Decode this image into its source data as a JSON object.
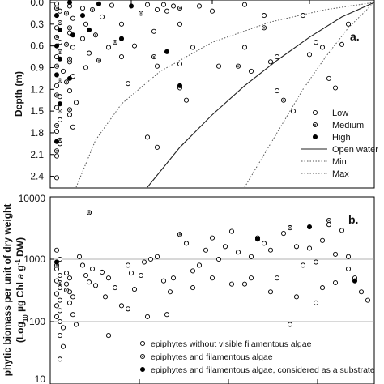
{
  "chart_data": [
    {
      "panel": "a.",
      "type": "scatter",
      "ylabel": "Depth (m)",
      "y_ticks": [
        "0.0",
        "0.3",
        "0.6",
        "0.9",
        "1.2",
        "1.5",
        "1.8",
        "2.1",
        "2.4"
      ],
      "ylim": [
        0.0,
        2.55
      ],
      "y_inverted": true,
      "x_visible": false,
      "xlim": [
        0,
        1
      ],
      "grid": false,
      "legend_position": "bottom-right",
      "legend": [
        {
          "label": "Low",
          "marker": "open-circle"
        },
        {
          "label": "Medium",
          "marker": "half-filled-circle"
        },
        {
          "label": "High",
          "marker": "filled-circle"
        },
        {
          "label": "Open water",
          "line": "solid"
        },
        {
          "label": "Min",
          "line": "dotted"
        },
        {
          "label": "Max",
          "line": "dotted"
        }
      ],
      "series": [
        {
          "name": "Low",
          "marker": "open-circle",
          "points": [
            [
              0.02,
              0.02
            ],
            [
              0.03,
              0.12
            ],
            [
              0.02,
              0.35
            ],
            [
              0.03,
              0.55
            ],
            [
              0.02,
              0.75
            ],
            [
              0.04,
              0.95
            ],
            [
              0.02,
              1.15
            ],
            [
              0.03,
              1.3
            ],
            [
              0.02,
              1.45
            ],
            [
              0.03,
              1.62
            ],
            [
              0.02,
              1.78
            ],
            [
              0.03,
              1.95
            ],
            [
              0.02,
              2.12
            ],
            [
              0.02,
              2.42
            ],
            [
              0.06,
              0.05
            ],
            [
              0.07,
              0.22
            ],
            [
              0.06,
              0.42
            ],
            [
              0.07,
              0.62
            ],
            [
              0.06,
              0.82
            ],
            [
              0.07,
              1.02
            ],
            [
              0.06,
              1.22
            ],
            [
              0.08,
              1.38
            ],
            [
              0.06,
              1.55
            ],
            [
              0.07,
              1.72
            ],
            [
              0.1,
              0.08
            ],
            [
              0.11,
              0.3
            ],
            [
              0.1,
              0.5
            ],
            [
              0.12,
              0.7
            ],
            [
              0.11,
              0.9
            ],
            [
              0.16,
              0.2
            ],
            [
              0.18,
              0.62
            ],
            [
              0.19,
              0.04
            ],
            [
              0.22,
              0.3
            ],
            [
              0.22,
              0.75
            ],
            [
              0.24,
              1.12
            ],
            [
              0.26,
              0.6
            ],
            [
              0.3,
              0.03
            ],
            [
              0.32,
              0.4
            ],
            [
              0.33,
              0.1
            ],
            [
              0.33,
              0.88
            ],
            [
              0.35,
              0.03
            ],
            [
              0.36,
              0.12
            ],
            [
              0.38,
              0.05
            ],
            [
              0.4,
              0.3
            ],
            [
              0.4,
              0.85
            ],
            [
              0.4,
              1.18
            ],
            [
              0.42,
              1.35
            ],
            [
              0.44,
              0.62
            ],
            [
              0.3,
              1.86
            ],
            [
              0.33,
              2.0
            ],
            [
              0.46,
              0.05
            ],
            [
              0.5,
              0.12
            ],
            [
              0.52,
              0.88
            ],
            [
              0.6,
              0.03
            ],
            [
              0.6,
              0.62
            ],
            [
              0.62,
              0.95
            ],
            [
              0.66,
              0.18
            ],
            [
              0.68,
              0.82
            ],
            [
              0.7,
              0.75
            ],
            [
              0.7,
              1.22
            ],
            [
              0.75,
              1.5
            ],
            [
              0.78,
              0.18
            ],
            [
              0.8,
              0.72
            ],
            [
              0.82,
              0.55
            ],
            [
              0.84,
              0.62
            ],
            [
              0.86,
              1.05
            ],
            [
              0.88,
              1.18
            ],
            [
              0.9,
              0.58
            ],
            [
              0.92,
              0.3
            ]
          ]
        },
        {
          "name": "Medium",
          "marker": "half-filled-circle",
          "points": [
            [
              0.02,
              0.08
            ],
            [
              0.03,
              0.28
            ],
            [
              0.02,
              0.48
            ],
            [
              0.03,
              0.68
            ],
            [
              0.02,
              0.88
            ],
            [
              0.03,
              1.08
            ],
            [
              0.02,
              1.28
            ],
            [
              0.03,
              1.5
            ],
            [
              0.02,
              1.7
            ],
            [
              0.03,
              1.9
            ],
            [
              0.02,
              2.05
            ],
            [
              0.05,
              0.15
            ],
            [
              0.06,
              0.35
            ],
            [
              0.05,
              0.58
            ],
            [
              0.06,
              0.78
            ],
            [
              0.05,
              1.1
            ],
            [
              0.06,
              1.48
            ],
            [
              0.13,
              0.1
            ],
            [
              0.14,
              0.45
            ],
            [
              0.15,
              0.8
            ],
            [
              0.2,
              0.55
            ],
            [
              0.28,
              0.15
            ],
            [
              0.32,
              0.75
            ],
            [
              0.4,
              0.08
            ],
            [
              0.58,
              0.88
            ],
            [
              0.66,
              0.35
            ],
            [
              0.72,
              1.35
            ]
          ]
        },
        {
          "name": "High",
          "marker": "filled-circle",
          "points": [
            [
              0.02,
              0.18
            ],
            [
              0.03,
              0.38
            ],
            [
              0.02,
              0.6
            ],
            [
              0.03,
              0.78
            ],
            [
              0.02,
              1.0
            ],
            [
              0.03,
              1.4
            ],
            [
              0.02,
              1.92
            ],
            [
              0.06,
              0.0
            ],
            [
              0.07,
              0.45
            ],
            [
              0.06,
              1.05
            ],
            [
              0.1,
              0.18
            ],
            [
              0.12,
              0.38
            ],
            [
              0.15,
              0.02
            ],
            [
              0.22,
              0.5
            ],
            [
              0.25,
              0.05
            ],
            [
              0.36,
              0.68
            ],
            [
              0.4,
              1.15
            ]
          ]
        }
      ],
      "lines": [
        {
          "name": "Open water",
          "style": "solid",
          "points": [
            [
              0.3,
              2.55
            ],
            [
              0.4,
              2.0
            ],
            [
              0.5,
              1.55
            ],
            [
              0.6,
              1.15
            ],
            [
              0.7,
              0.8
            ],
            [
              0.8,
              0.48
            ],
            [
              0.9,
              0.2
            ],
            [
              1.0,
              0.0
            ]
          ]
        },
        {
          "name": "Min",
          "style": "dotted",
          "points": [
            [
              0.08,
              2.55
            ],
            [
              0.14,
              1.9
            ],
            [
              0.22,
              1.4
            ],
            [
              0.34,
              0.95
            ],
            [
              0.5,
              0.55
            ],
            [
              0.68,
              0.27
            ],
            [
              0.85,
              0.1
            ],
            [
              1.0,
              0.0
            ]
          ]
        },
        {
          "name": "Max",
          "style": "dotted",
          "points": [
            [
              0.6,
              2.55
            ],
            [
              0.7,
              1.8
            ],
            [
              0.78,
              1.2
            ],
            [
              0.85,
              0.75
            ],
            [
              0.92,
              0.35
            ],
            [
              1.0,
              0.0
            ]
          ]
        }
      ]
    },
    {
      "panel": "b.",
      "type": "scatter",
      "ylabel": "phytic biomass  per unit of dry weight (Log10 µg Chl a g-1 DW)",
      "ylabel_line1": "phytic biomass  per unit of dry weight",
      "ylabel_line2_parts": [
        "(Log",
        "10",
        " µg Chl ",
        "a",
        " g",
        "-1",
        " DW)"
      ],
      "y_scale": "log",
      "y_ticks": [
        "10",
        "100",
        "1000",
        "10000"
      ],
      "ylim": [
        10,
        10000
      ],
      "xlim": [
        0,
        1
      ],
      "grid": "horizontal at 100 and 1000",
      "legend_position": "bottom",
      "legend": [
        {
          "label": "epiphytes without visible filamentous algae",
          "marker": "open-circle"
        },
        {
          "label": "epiphytes and filamentous algae",
          "marker": "half-filled-circle"
        },
        {
          "label": "epiphytes and filamentous algae, considered as a substrate",
          "marker": "filled-circle"
        }
      ],
      "series": [
        {
          "name": "epiphytes without visible filamentous algae",
          "marker": "open-circle",
          "points": [
            [
              0.02,
              1400
            ],
            [
              0.03,
              1000
            ],
            [
              0.02,
              700
            ],
            [
              0.03,
              550
            ],
            [
              0.02,
              450
            ],
            [
              0.03,
              350
            ],
            [
              0.02,
              280
            ],
            [
              0.03,
              220
            ],
            [
              0.02,
              180
            ],
            [
              0.03,
              150
            ],
            [
              0.02,
              120
            ],
            [
              0.03,
              100
            ],
            [
              0.04,
              80
            ],
            [
              0.03,
              60
            ],
            [
              0.04,
              40
            ],
            [
              0.03,
              25
            ],
            [
              0.05,
              600
            ],
            [
              0.06,
              500
            ],
            [
              0.05,
              400
            ],
            [
              0.06,
              300
            ],
            [
              0.07,
              250
            ],
            [
              0.06,
              200
            ],
            [
              0.07,
              130
            ],
            [
              0.08,
              90
            ],
            [
              0.09,
              1100
            ],
            [
              0.1,
              800
            ],
            [
              0.11,
              550
            ],
            [
              0.12,
              430
            ],
            [
              0.13,
              700
            ],
            [
              0.14,
              380
            ],
            [
              0.16,
              620
            ],
            [
              0.17,
              250
            ],
            [
              0.18,
              500
            ],
            [
              0.2,
              350
            ],
            [
              0.22,
              180
            ],
            [
              0.12,
              5600
            ],
            [
              0.24,
              800
            ],
            [
              0.25,
              600
            ],
            [
              0.26,
              330
            ],
            [
              0.28,
              550
            ],
            [
              0.29,
              900
            ],
            [
              0.31,
              1000
            ],
            [
              0.33,
              1100
            ],
            [
              0.35,
              450
            ],
            [
              0.37,
              300
            ],
            [
              0.38,
              500
            ],
            [
              0.4,
              2500
            ],
            [
              0.42,
              1800
            ],
            [
              0.44,
              650
            ],
            [
              0.46,
              800
            ],
            [
              0.48,
              1400
            ],
            [
              0.5,
              2200
            ],
            [
              0.52,
              1000
            ],
            [
              0.54,
              1600
            ],
            [
              0.56,
              2800
            ],
            [
              0.58,
              1300
            ],
            [
              0.6,
              400
            ],
            [
              0.62,
              1100
            ],
            [
              0.64,
              2200
            ],
            [
              0.66,
              1800
            ],
            [
              0.68,
              1400
            ],
            [
              0.7,
              500
            ],
            [
              0.72,
              2600
            ],
            [
              0.74,
              3200
            ],
            [
              0.76,
              1600
            ],
            [
              0.78,
              800
            ],
            [
              0.8,
              1500
            ],
            [
              0.82,
              900
            ],
            [
              0.84,
              2000
            ],
            [
              0.86,
              3600
            ],
            [
              0.88,
              1200
            ],
            [
              0.9,
              2900
            ],
            [
              0.92,
              1100
            ],
            [
              0.94,
              500
            ],
            [
              0.96,
              300
            ],
            [
              0.98,
              220
            ],
            [
              0.24,
              160
            ],
            [
              0.3,
              120
            ],
            [
              0.44,
              350
            ],
            [
              0.5,
              500
            ],
            [
              0.62,
              500
            ],
            [
              0.68,
              300
            ],
            [
              0.76,
              250
            ],
            [
              0.84,
              350
            ],
            [
              0.88,
              420
            ],
            [
              0.92,
              700
            ],
            [
              0.18,
              60
            ],
            [
              0.36,
              130
            ],
            [
              0.56,
              400
            ],
            [
              0.74,
              90
            ],
            [
              0.82,
              200
            ]
          ]
        },
        {
          "name": "epiphytes and filamentous algae",
          "marker": "half-filled-circle",
          "points": [
            [
              0.02,
              800
            ],
            [
              0.03,
              420
            ],
            [
              0.05,
              320
            ],
            [
              0.12,
              5600
            ],
            [
              0.4,
              2500
            ],
            [
              0.74,
              3200
            ],
            [
              0.86,
              4200
            ]
          ]
        },
        {
          "name": "epiphytes and filamentous algae, considered as a substrate",
          "marker": "filled-circle",
          "points": [
            [
              0.02,
              900
            ],
            [
              0.64,
              2100
            ],
            [
              0.8,
              3300
            ],
            [
              0.94,
              450
            ]
          ]
        }
      ]
    }
  ]
}
